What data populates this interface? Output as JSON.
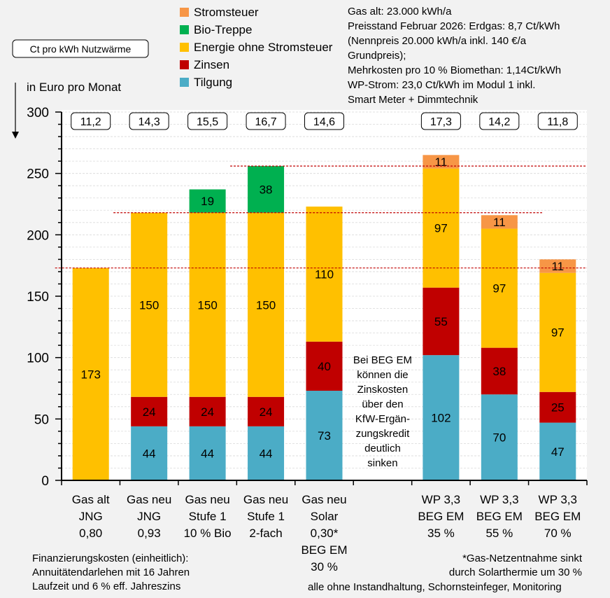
{
  "chart_data": {
    "type": "bar",
    "stacked": true,
    "ylabel": "in Euro pro Monat",
    "ylim": [
      0,
      300
    ],
    "yticks": [
      0,
      50,
      100,
      150,
      200,
      250,
      300
    ],
    "grid": true,
    "legend_position": "top",
    "unit_box_label": "Ct pro kWh Nutzwärme",
    "categories": [
      [
        "Gas alt",
        "JNG",
        "0,80"
      ],
      [
        "Gas neu",
        "JNG",
        "0,93"
      ],
      [
        "Gas neu",
        "Stufe 1",
        "10 % Bio"
      ],
      [
        "Gas neu",
        "Stufe 1",
        "2-fach"
      ],
      [
        "Gas neu",
        "Solar",
        "0,30*",
        "BEG EM",
        "30 %"
      ],
      [],
      [
        "WP 3,3",
        "BEG EM",
        "35 %"
      ],
      [
        "WP 3,3",
        "BEG EM",
        "55 %"
      ],
      [
        "WP 3,3",
        "BEG EM",
        "70 %"
      ]
    ],
    "ct_per_kwh": [
      "11,2",
      "14,3",
      "15,5",
      "16,7",
      "14,6",
      "",
      "17,3",
      "14,2",
      "11,8"
    ],
    "series": [
      {
        "name": "Tilgung",
        "color": "#4bacc6",
        "label_color": "#000000",
        "values": [
          0,
          44,
          44,
          44,
          73,
          null,
          102,
          70,
          47
        ]
      },
      {
        "name": "Zinsen",
        "color": "#c00000",
        "label_color": "#ffffff",
        "values": [
          0,
          24,
          24,
          24,
          40,
          null,
          55,
          38,
          25
        ]
      },
      {
        "name": "Energie ohne Stromsteuer",
        "color": "#ffc000",
        "label_color": "#000000",
        "values": [
          173,
          150,
          150,
          150,
          110,
          null,
          97,
          97,
          97
        ]
      },
      {
        "name": "Bio-Treppe",
        "color": "#00b050",
        "label_color": "#ffffff",
        "values": [
          0,
          0,
          19,
          38,
          0,
          null,
          0,
          0,
          0
        ]
      },
      {
        "name": "Stromsteuer",
        "color": "#f79646",
        "label_color": "#000000",
        "values": [
          0,
          0,
          0,
          0,
          0,
          null,
          11,
          11,
          11
        ]
      }
    ],
    "reference_lines": [
      {
        "value": 256,
        "from_category": 3,
        "color": "#c00000"
      },
      {
        "value": 218,
        "from_category": 1,
        "color": "#c00000"
      },
      {
        "value": 173,
        "from_category": 0,
        "color": "#c00000"
      }
    ],
    "annotation_middle": [
      "Bei BEG EM",
      "können die",
      "Zinskosten",
      "über den",
      "KfW-Ergän-",
      "zungskredit",
      "deutlich",
      "sinken"
    ]
  },
  "info_text": [
    "Gas alt: 23.000 kWh/a",
    "Preisstand Februar 2026: Erdgas: 8,7 Ct/kWh",
    "(Nennpreis 20.000 kWh/a inkl. 140 €/a",
    "Grundpreis);",
    "Mehrkosten pro 10 % Biomethan: 1,14Ct/kWh",
    "WP-Strom: 23,0 Ct/kWh im Modul 1 inkl.",
    "Smart Meter + Dimmtechnik"
  ],
  "footnote_left": [
    "Finanzierungskosten (einheitlich):",
    "Annuitätendarlehen mit 16 Jahren",
    "Laufzeit und 6 % eff. Jahreszins"
  ],
  "footnote_right": [
    "*Gas-Netzentnahme sinkt",
    "durch Solarthermie um 30 %"
  ],
  "footnote_bottom": "alle ohne Instandhaltung, Schornsteinfeger, Monitoring"
}
